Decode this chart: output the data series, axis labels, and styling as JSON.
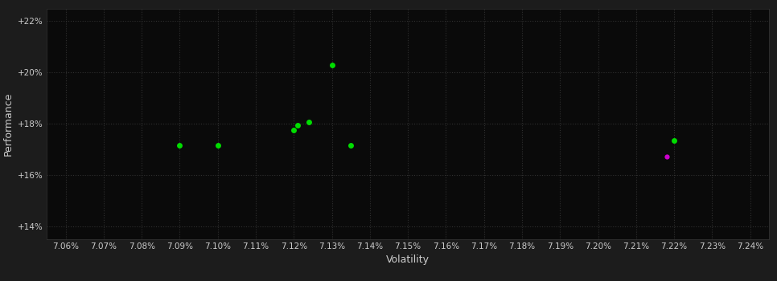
{
  "xlabel": "Volatility",
  "ylabel": "Performance",
  "background_color": "#1c1c1c",
  "plot_bg_color": "#0a0a0a",
  "grid_color": "#2a2a2a",
  "x_min": 7.055,
  "x_max": 7.245,
  "y_min": 13.5,
  "y_max": 22.5,
  "x_ticks": [
    7.06,
    7.07,
    7.08,
    7.09,
    7.1,
    7.11,
    7.12,
    7.13,
    7.14,
    7.15,
    7.16,
    7.17,
    7.18,
    7.19,
    7.2,
    7.21,
    7.22,
    7.23,
    7.24
  ],
  "y_ticks": [
    14,
    16,
    18,
    20,
    22
  ],
  "green_points": [
    [
      7.09,
      17.15
    ],
    [
      7.1,
      17.15
    ],
    [
      7.12,
      17.75
    ],
    [
      7.121,
      17.95
    ],
    [
      7.124,
      18.05
    ],
    [
      7.13,
      20.3
    ],
    [
      7.135,
      17.15
    ],
    [
      7.22,
      17.35
    ]
  ],
  "magenta_points": [
    [
      7.218,
      16.7
    ]
  ],
  "dot_size_green": 25,
  "dot_size_magenta": 20,
  "green_color": "#00dd00",
  "magenta_color": "#cc00cc",
  "axis_label_color": "#cccccc",
  "tick_label_color": "#cccccc",
  "tick_fontsize": 7.5,
  "axis_label_fontsize": 9
}
